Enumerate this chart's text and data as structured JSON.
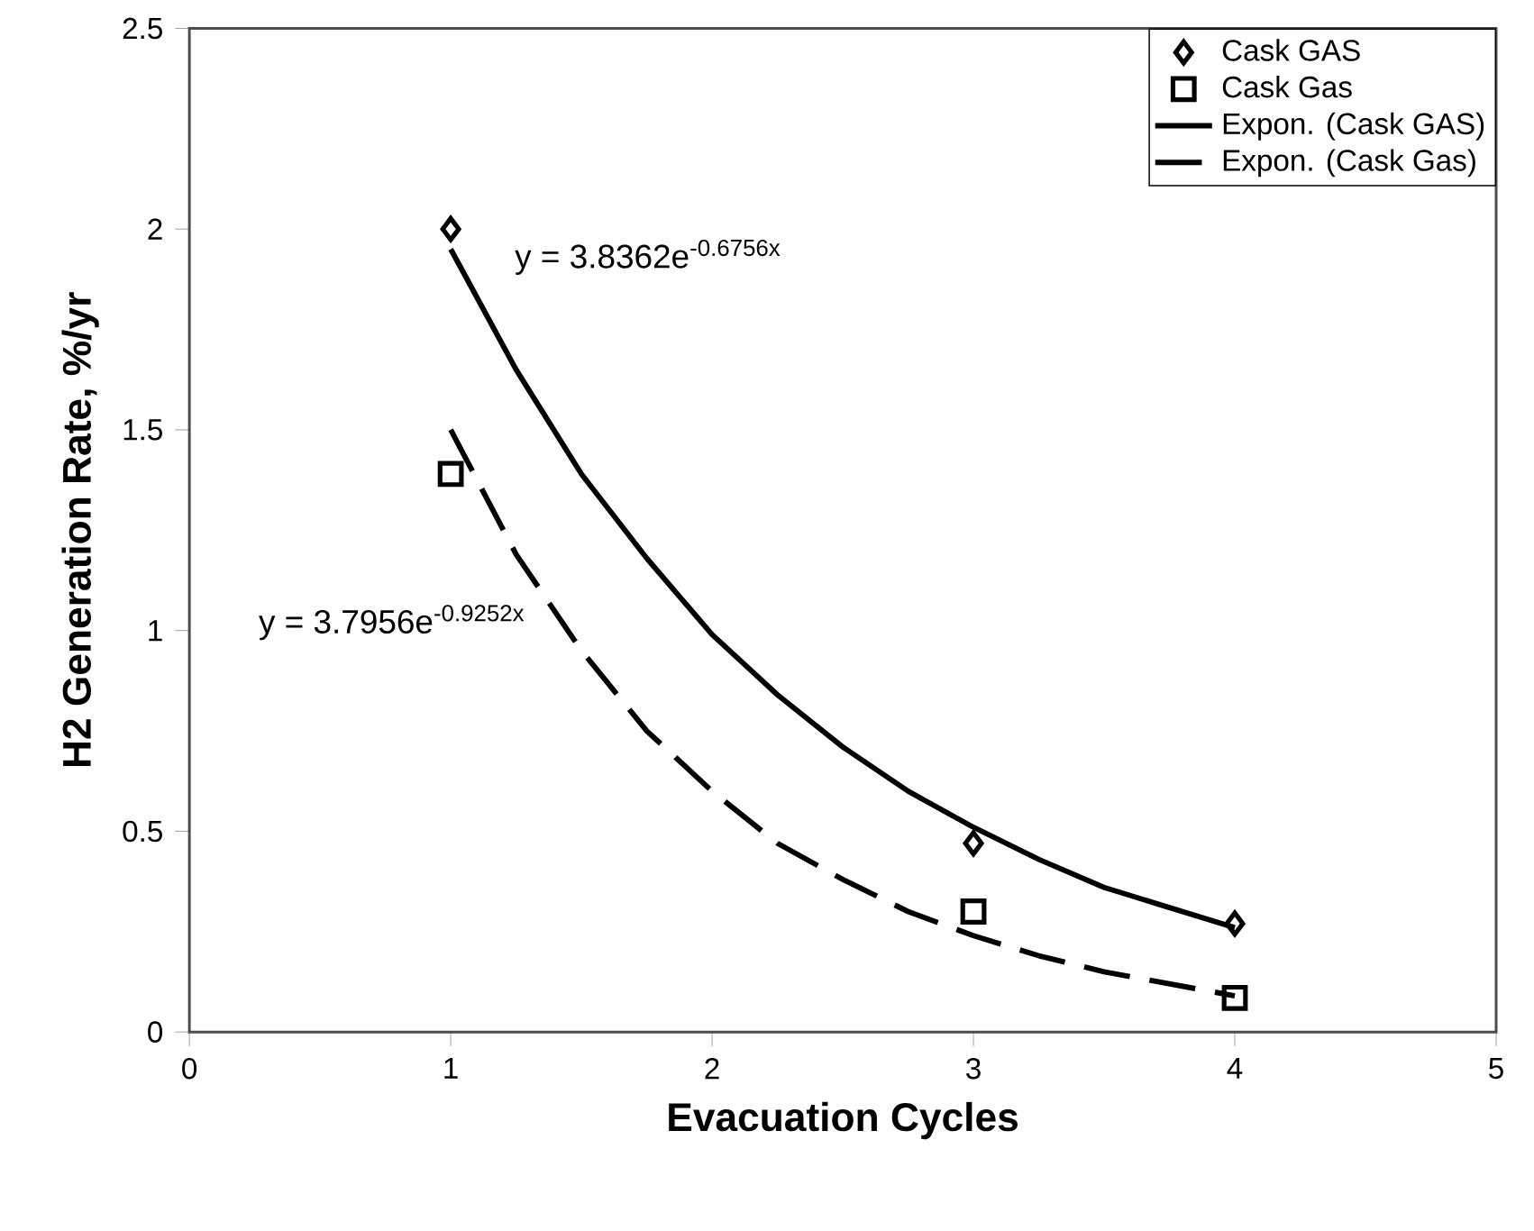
{
  "chart_data": {
    "type": "scatter",
    "xlabel": "Evacuation Cycles",
    "ylabel": "H2 Generation Rate, %/yr",
    "xlim": [
      0,
      5
    ],
    "xticks": [
      0,
      1,
      2,
      3,
      4,
      5
    ],
    "ylim": [
      0,
      2.5
    ],
    "yticks": [
      0,
      0.5,
      1,
      1.5,
      2,
      2.5
    ],
    "grid": false,
    "legend": "top right",
    "annotations": [
      "y = 3.8362e$^{-0.6756x}$",
      "y = 3.7956e$^{-0.9252x}$"
    ],
    "series": [
      {
        "name": "Cask GAS",
        "marker": "diamond",
        "color": "#000000",
        "x": [
          1,
          3,
          4
        ],
        "values": [
          2.0,
          0.47,
          0.27
        ]
      },
      {
        "name": "Cask Gas",
        "marker": "square",
        "color": "#000000",
        "x": [
          1,
          3,
          4
        ],
        "values": [
          1.39,
          0.3,
          0.085
        ]
      },
      {
        "name": "Expon. (Cask GAS)",
        "type": "line",
        "line_style": "solid",
        "color": "#000000",
        "x": [
          1,
          1.25,
          1.5,
          1.75,
          2,
          2.25,
          2.5,
          2.75,
          3,
          3.25,
          3.5,
          3.75,
          4
        ],
        "values": [
          1.95,
          1.65,
          1.39,
          1.18,
          0.99,
          0.84,
          0.71,
          0.6,
          0.51,
          0.43,
          0.36,
          0.31,
          0.26
        ]
      },
      {
        "name": "Expon. (Cask Gas)",
        "type": "line",
        "line_style": "dashed",
        "color": "#000000",
        "x": [
          1,
          1.25,
          1.5,
          1.75,
          2,
          2.25,
          2.5,
          2.75,
          3,
          3.25,
          3.5,
          3.75,
          4
        ],
        "values": [
          1.5,
          1.19,
          0.95,
          0.75,
          0.6,
          0.47,
          0.38,
          0.3,
          0.24,
          0.19,
          0.15,
          0.12,
          0.09
        ]
      }
    ]
  }
}
